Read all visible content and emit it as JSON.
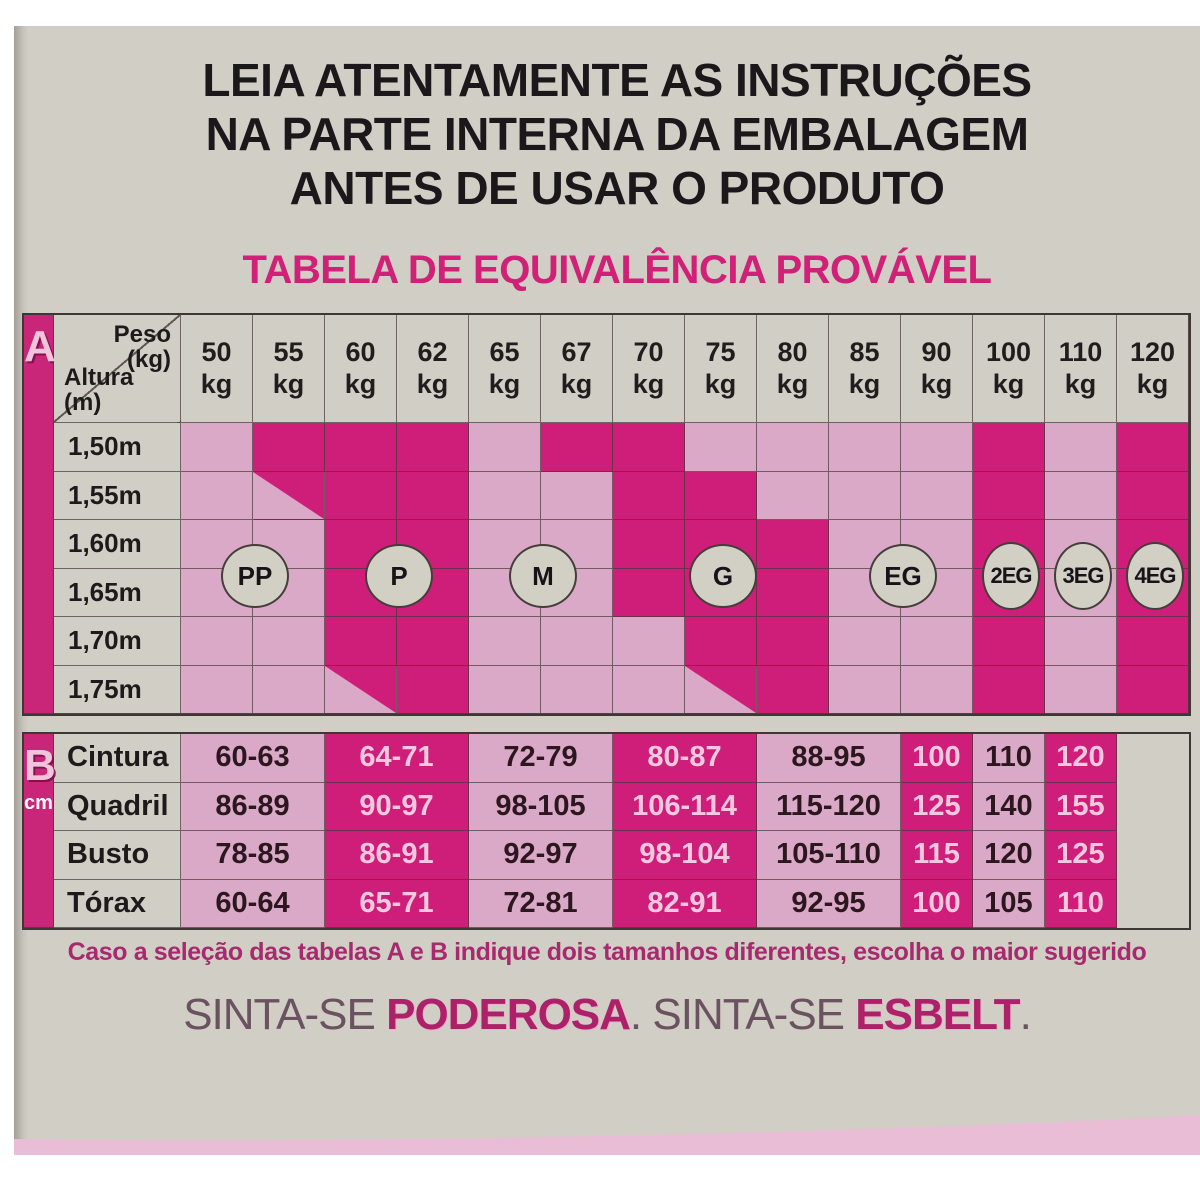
{
  "page": {
    "header_lines": [
      "LEIA ATENTAMENTE AS INSTRUÇÕES",
      "NA PARTE INTERNA DA EMBALAGEM",
      "ANTES DE USAR O PRODUTO"
    ],
    "table_title": "TABELA DE EQUIVALÊNCIA PROVÁVEL",
    "footer_note": "Caso a seleção das tabelas A e B indique dois tamanhos diferentes, escolha o maior sugerido",
    "tagline": {
      "pre": "SINTA-SE ",
      "bold1": "PODEROSA",
      "mid": ". SINTA-SE ",
      "bold2": "ESBELT",
      "end": "."
    }
  },
  "table_a": {
    "section_label": "A",
    "corner": {
      "peso_label": "Peso",
      "peso_unit": "(kg)",
      "altura_label": "Altura",
      "altura_unit": "(m)"
    },
    "weight_unit": "kg",
    "weights": [
      "50",
      "55",
      "60",
      "62",
      "65",
      "67",
      "70",
      "75",
      "80",
      "85",
      "90",
      "100",
      "110",
      "120"
    ],
    "heights": [
      "1,50m",
      "1,55m",
      "1,60m",
      "1,65m",
      "1,70m",
      "1,75m"
    ],
    "cell_legend": {
      "L": "light pink region",
      "D": "dark pink region",
      "X": "diagonal split, dark upper-right"
    },
    "cells": [
      "LDDDLDDLLLLDLD",
      "LXDDLLDDLLLDLD",
      "LLDDLLDDDLLDLD",
      "LLDDLLDDDLLDLD",
      "LLDDLLLDDLLDLD",
      "LLXDLLLXDLLDLD"
    ],
    "size_markers": [
      {
        "label": "PP",
        "col_pos": 1.0
      },
      {
        "label": "P",
        "col_pos": 3.0
      },
      {
        "label": "M",
        "col_pos": 5.0
      },
      {
        "label": "G",
        "col_pos": 7.5
      },
      {
        "label": "EG",
        "col_pos": 10.0
      },
      {
        "label": "2EG",
        "col_pos": 11.5
      },
      {
        "label": "3EG",
        "col_pos": 12.5
      },
      {
        "label": "4EG",
        "col_pos": 13.5
      }
    ]
  },
  "table_b": {
    "section_label": "B",
    "unit_label": "cm",
    "column_spans": [
      2,
      2,
      2,
      2,
      2,
      1,
      1,
      1
    ],
    "shading": [
      "L",
      "D",
      "L",
      "D",
      "L",
      "D",
      "L",
      "D"
    ],
    "rows": [
      {
        "label": "Cintura",
        "values": [
          "60-63",
          "64-71",
          "72-79",
          "80-87",
          "88-95",
          "100",
          "110",
          "120"
        ]
      },
      {
        "label": "Quadril",
        "values": [
          "86-89",
          "90-97",
          "98-105",
          "106-114",
          "115-120",
          "125",
          "140",
          "155"
        ]
      },
      {
        "label": "Busto",
        "values": [
          "78-85",
          "86-91",
          "92-97",
          "98-104",
          "105-110",
          "115",
          "120",
          "125"
        ]
      },
      {
        "label": "Tórax",
        "values": [
          "60-64",
          "65-71",
          "72-81",
          "82-91",
          "92-95",
          "100",
          "105",
          "110"
        ]
      }
    ]
  },
  "colors": {
    "paper": "#d1cec6",
    "cell_light": "#d9a9c7",
    "cell_dark": "#cf1e79",
    "band": "#c92579",
    "title_pink": "#d02078",
    "text_black": "#1b181c",
    "swoosh_pink": "#e9bdd5"
  }
}
